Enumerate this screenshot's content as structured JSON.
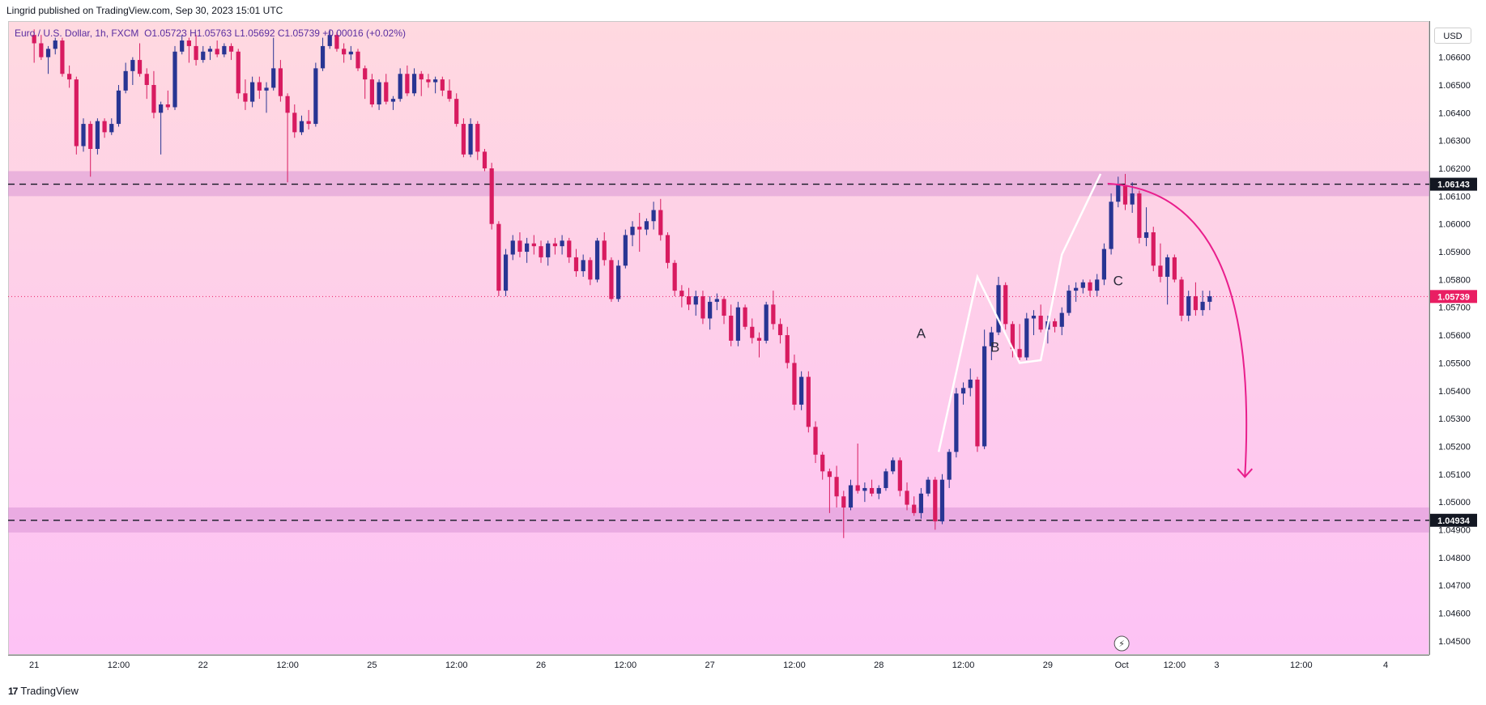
{
  "header": {
    "published": "Lingrid published on TradingView.com, Sep 30, 2023 15:01 UTC"
  },
  "symbol": {
    "name": "Euro / U.S. Dollar, 1h, FXCM",
    "ohlc": "O1.05723  H1.05763  L1.05692  C1.05739  +0.00016 (+0.02%)"
  },
  "currency_label": "USD",
  "footer": {
    "brand": "TradingView",
    "logo": "17"
  },
  "chart_data": {
    "type": "candlestick",
    "title": "",
    "xlabel": "",
    "ylabel": "",
    "ylim": [
      1.0445,
      1.0673
    ],
    "price_ticks": [
      1.066,
      1.065,
      1.064,
      1.063,
      1.062,
      1.061,
      1.06,
      1.059,
      1.058,
      1.057,
      1.056,
      1.055,
      1.054,
      1.053,
      1.052,
      1.051,
      1.05,
      1.049,
      1.048,
      1.047,
      1.046,
      1.045
    ],
    "price_tick_labels": [
      "1.06600",
      "1.06500",
      "1.06400",
      "1.06300",
      "1.06200",
      "1.06100",
      "1.06000",
      "1.05900",
      "1.05800",
      "1.05700",
      "1.05600",
      "1.05500",
      "1.05400",
      "1.05300",
      "1.05200",
      "1.05100",
      "1.05000",
      "1.04900",
      "1.04800",
      "1.04700",
      "1.04600",
      "1.04500"
    ],
    "time_ticks": [
      {
        "label": "21",
        "x": 0
      },
      {
        "label": "12:00",
        "x": 12
      },
      {
        "label": "22",
        "x": 24
      },
      {
        "label": "12:00",
        "x": 36
      },
      {
        "label": "25",
        "x": 48
      },
      {
        "label": "12:00",
        "x": 60
      },
      {
        "label": "26",
        "x": 72
      },
      {
        "label": "12:00",
        "x": 84
      },
      {
        "label": "27",
        "x": 96
      },
      {
        "label": "12:00",
        "x": 108
      },
      {
        "label": "28",
        "x": 120
      },
      {
        "label": "12:00",
        "x": 132
      },
      {
        "label": "29",
        "x": 144
      },
      {
        "label": "Oct",
        "x": 154.5
      },
      {
        "label": "12:00",
        "x": 162
      },
      {
        "label": "3",
        "x": 168
      },
      {
        "label": "12:00",
        "x": 180
      },
      {
        "label": "4",
        "x": 192
      }
    ],
    "xlim": [
      -3.7,
      198.2
    ],
    "resistance_zone": [
      1.061,
      1.0619
    ],
    "support_zone": [
      1.0489,
      1.0498
    ],
    "resistance_level": 1.06143,
    "support_level": 1.04934,
    "resistance_label": "1.06143",
    "support_label": "1.04934",
    "last_price": 1.05739,
    "last_price_label": "1.05739",
    "wave_labels": [
      {
        "text": "A",
        "x": 126,
        "y": 1.0559
      },
      {
        "text": "B",
        "x": 136.5,
        "y": 1.0554
      },
      {
        "text": "C",
        "x": 154,
        "y": 1.0578
      }
    ],
    "pattern_line": [
      [
        128.5,
        1.0518
      ],
      [
        134,
        1.0581
      ],
      [
        140,
        1.055
      ],
      [
        143,
        1.0551
      ],
      [
        146,
        1.0589
      ],
      [
        151.5,
        1.0618
      ]
    ],
    "projection_arrow": {
      "from": [
        152.5,
        1.06145
      ],
      "to": [
        172,
        1.0509
      ]
    },
    "candles": [
      [
        1.0668,
        1.067,
        1.0658,
        1.0665
      ],
      [
        1.0665,
        1.0668,
        1.0659,
        1.066
      ],
      [
        1.066,
        1.0664,
        1.0654,
        1.0663
      ],
      [
        1.0663,
        1.0667,
        1.0661,
        1.0666
      ],
      [
        1.0666,
        1.0667,
        1.0653,
        1.0654
      ],
      [
        1.0654,
        1.0657,
        1.0649,
        1.0652
      ],
      [
        1.0652,
        1.0653,
        1.0625,
        1.0628
      ],
      [
        1.0628,
        1.0638,
        1.0626,
        1.0636
      ],
      [
        1.0636,
        1.0637,
        1.0617,
        1.0627
      ],
      [
        1.0627,
        1.0638,
        1.0625,
        1.0637
      ],
      [
        1.0637,
        1.0638,
        1.0631,
        1.0633
      ],
      [
        1.0633,
        1.0638,
        1.0632,
        1.0636
      ],
      [
        1.0636,
        1.065,
        1.0635,
        1.0648
      ],
      [
        1.0648,
        1.0658,
        1.0647,
        1.0655
      ],
      [
        1.0655,
        1.066,
        1.065,
        1.0659
      ],
      [
        1.0659,
        1.0665,
        1.0653,
        1.0654
      ],
      [
        1.0654,
        1.0656,
        1.0645,
        1.065
      ],
      [
        1.065,
        1.0655,
        1.0638,
        1.064
      ],
      [
        1.064,
        1.0644,
        1.0625,
        1.0643
      ],
      [
        1.0643,
        1.0648,
        1.0641,
        1.0642
      ],
      [
        1.0642,
        1.0664,
        1.0641,
        1.0662
      ],
      [
        1.0662,
        1.0668,
        1.0661,
        1.0666
      ],
      [
        1.0666,
        1.0667,
        1.0658,
        1.0664
      ],
      [
        1.0664,
        1.0668,
        1.0657,
        1.0659
      ],
      [
        1.0659,
        1.0664,
        1.0658,
        1.0662
      ],
      [
        1.0662,
        1.0664,
        1.0659,
        1.0663
      ],
      [
        1.0663,
        1.0666,
        1.066,
        1.0661
      ],
      [
        1.0661,
        1.0665,
        1.066,
        1.0664
      ],
      [
        1.0664,
        1.0665,
        1.0659,
        1.0662
      ],
      [
        1.0662,
        1.0663,
        1.0645,
        1.0647
      ],
      [
        1.0647,
        1.0652,
        1.0641,
        1.0644
      ],
      [
        1.0644,
        1.0653,
        1.0642,
        1.0651
      ],
      [
        1.0651,
        1.0653,
        1.0645,
        1.0648
      ],
      [
        1.0648,
        1.0651,
        1.064,
        1.0649
      ],
      [
        1.0649,
        1.0667,
        1.0648,
        1.0656
      ],
      [
        1.0656,
        1.0659,
        1.0644,
        1.0646
      ],
      [
        1.0646,
        1.0647,
        1.0615,
        1.064
      ],
      [
        1.064,
        1.0643,
        1.0631,
        1.0633
      ],
      [
        1.0633,
        1.0639,
        1.0632,
        1.0637
      ],
      [
        1.0637,
        1.0641,
        1.0634,
        1.0636
      ],
      [
        1.0636,
        1.0658,
        1.0635,
        1.0656
      ],
      [
        1.0656,
        1.0667,
        1.0655,
        1.0664
      ],
      [
        1.0664,
        1.067,
        1.0663,
        1.0668
      ],
      [
        1.0668,
        1.0669,
        1.0662,
        1.0663
      ],
      [
        1.0663,
        1.0665,
        1.0658,
        1.0661
      ],
      [
        1.0661,
        1.0664,
        1.0659,
        1.0662
      ],
      [
        1.0662,
        1.0663,
        1.0655,
        1.0656
      ],
      [
        1.0656,
        1.0657,
        1.0645,
        1.0652
      ],
      [
        1.0652,
        1.0654,
        1.0642,
        1.0643
      ],
      [
        1.0643,
        1.0652,
        1.0641,
        1.0651
      ],
      [
        1.0651,
        1.0654,
        1.0643,
        1.0644
      ],
      [
        1.0644,
        1.0646,
        1.0641,
        1.0645
      ],
      [
        1.0645,
        1.0656,
        1.0644,
        1.0654
      ],
      [
        1.0654,
        1.0657,
        1.0646,
        1.0647
      ],
      [
        1.0647,
        1.0656,
        1.0646,
        1.0654
      ],
      [
        1.0654,
        1.0655,
        1.0646,
        1.0652
      ],
      [
        1.0652,
        1.0654,
        1.0649,
        1.0651
      ],
      [
        1.0651,
        1.0653,
        1.0647,
        1.0652
      ],
      [
        1.0652,
        1.0653,
        1.0646,
        1.0648
      ],
      [
        1.0648,
        1.0652,
        1.0644,
        1.0645
      ],
      [
        1.0645,
        1.0647,
        1.0635,
        1.0636
      ],
      [
        1.0636,
        1.0638,
        1.0624,
        1.0625
      ],
      [
        1.0625,
        1.0638,
        1.0624,
        1.0636
      ],
      [
        1.0636,
        1.0637,
        1.0623,
        1.0626
      ],
      [
        1.0626,
        1.0627,
        1.0619,
        1.062
      ],
      [
        1.062,
        1.0622,
        1.0598,
        1.06
      ],
      [
        1.06,
        1.0601,
        1.0574,
        1.0576
      ],
      [
        1.0576,
        1.0591,
        1.0574,
        1.0589
      ],
      [
        1.0589,
        1.0596,
        1.0587,
        1.0594
      ],
      [
        1.0594,
        1.0597,
        1.0588,
        1.059
      ],
      [
        1.059,
        1.0595,
        1.0586,
        1.0593
      ],
      [
        1.0593,
        1.0596,
        1.0589,
        1.0592
      ],
      [
        1.0592,
        1.0594,
        1.0586,
        1.0588
      ],
      [
        1.0588,
        1.0594,
        1.0585,
        1.0593
      ],
      [
        1.0593,
        1.0595,
        1.0589,
        1.0592
      ],
      [
        1.0592,
        1.0596,
        1.0589,
        1.0594
      ],
      [
        1.0594,
        1.0595,
        1.0586,
        1.0588
      ],
      [
        1.0588,
        1.0591,
        1.0581,
        1.0583
      ],
      [
        1.0583,
        1.0589,
        1.0581,
        1.0587
      ],
      [
        1.0587,
        1.0588,
        1.0578,
        1.058
      ],
      [
        1.058,
        1.0595,
        1.0579,
        1.0594
      ],
      [
        1.0594,
        1.0597,
        1.0585,
        1.0587
      ],
      [
        1.0587,
        1.0588,
        1.0572,
        1.0573
      ],
      [
        1.0573,
        1.0587,
        1.0572,
        1.0585
      ],
      [
        1.0585,
        1.0598,
        1.0584,
        1.0596
      ],
      [
        1.0596,
        1.0601,
        1.0592,
        1.0599
      ],
      [
        1.0599,
        1.0604,
        1.059,
        1.0598
      ],
      [
        1.0598,
        1.0602,
        1.0596,
        1.0601
      ],
      [
        1.0601,
        1.0608,
        1.0598,
        1.0605
      ],
      [
        1.0605,
        1.0609,
        1.0594,
        1.0596
      ],
      [
        1.0596,
        1.0597,
        1.0584,
        1.0586
      ],
      [
        1.0586,
        1.0587,
        1.0574,
        1.0576
      ],
      [
        1.0576,
        1.0578,
        1.057,
        1.0574
      ],
      [
        1.0574,
        1.0577,
        1.0569,
        1.0571
      ],
      [
        1.0571,
        1.0576,
        1.0567,
        1.0574
      ],
      [
        1.0574,
        1.0576,
        1.0564,
        1.0566
      ],
      [
        1.0566,
        1.0574,
        1.0562,
        1.0572
      ],
      [
        1.0572,
        1.0575,
        1.0569,
        1.0573
      ],
      [
        1.0573,
        1.0574,
        1.0564,
        1.0567
      ],
      [
        1.0567,
        1.0571,
        1.0556,
        1.0558
      ],
      [
        1.0558,
        1.0572,
        1.0556,
        1.057
      ],
      [
        1.057,
        1.0571,
        1.0562,
        1.0563
      ],
      [
        1.0563,
        1.0566,
        1.0557,
        1.0559
      ],
      [
        1.0559,
        1.0561,
        1.0552,
        1.0558
      ],
      [
        1.0558,
        1.0572,
        1.0557,
        1.0571
      ],
      [
        1.0571,
        1.0576,
        1.0562,
        1.0564
      ],
      [
        1.0564,
        1.0566,
        1.0557,
        1.056
      ],
      [
        1.056,
        1.0563,
        1.0548,
        1.055
      ],
      [
        1.055,
        1.0553,
        1.0533,
        1.0535
      ],
      [
        1.0535,
        1.0547,
        1.0533,
        1.0545
      ],
      [
        1.0545,
        1.0547,
        1.0525,
        1.0527
      ],
      [
        1.0527,
        1.0529,
        1.0514,
        1.0517
      ],
      [
        1.0517,
        1.0518,
        1.0508,
        1.0511
      ],
      [
        1.0511,
        1.0512,
        1.0496,
        1.0509
      ],
      [
        1.0509,
        1.0513,
        1.0498,
        1.0502
      ],
      [
        1.0502,
        1.0504,
        1.0487,
        1.0498
      ],
      [
        1.0498,
        1.0508,
        1.0497,
        1.0506
      ],
      [
        1.0506,
        1.0521,
        1.0503,
        1.0504
      ],
      [
        1.0504,
        1.0507,
        1.05,
        1.0505
      ],
      [
        1.0505,
        1.0508,
        1.0502,
        1.0503
      ],
      [
        1.0503,
        1.0506,
        1.0501,
        1.0505
      ],
      [
        1.0505,
        1.0512,
        1.0504,
        1.0511
      ],
      [
        1.0511,
        1.0516,
        1.051,
        1.0515
      ],
      [
        1.0515,
        1.0516,
        1.0502,
        1.0504
      ],
      [
        1.0504,
        1.0507,
        1.0497,
        1.0499
      ],
      [
        1.0499,
        1.0502,
        1.0495,
        1.0496
      ],
      [
        1.0496,
        1.0505,
        1.0494,
        1.0503
      ],
      [
        1.0503,
        1.0509,
        1.0502,
        1.0508
      ],
      [
        1.0508,
        1.0509,
        1.049,
        1.0493
      ],
      [
        1.0493,
        1.051,
        1.0492,
        1.0508
      ],
      [
        1.0508,
        1.0519,
        1.0505,
        1.0518
      ],
      [
        1.0518,
        1.0541,
        1.0516,
        1.0539
      ],
      [
        1.0539,
        1.0543,
        1.0535,
        1.0541
      ],
      [
        1.0541,
        1.0548,
        1.0538,
        1.0544
      ],
      [
        1.0544,
        1.0545,
        1.0518,
        1.052
      ],
      [
        1.052,
        1.0562,
        1.0519,
        1.0556
      ],
      [
        1.0556,
        1.0563,
        1.0551,
        1.0561
      ],
      [
        1.0561,
        1.0581,
        1.056,
        1.0578
      ],
      [
        1.0578,
        1.0579,
        1.0562,
        1.0564
      ],
      [
        1.0564,
        1.0565,
        1.0552,
        1.0555
      ],
      [
        1.0555,
        1.0564,
        1.0551,
        1.0552
      ],
      [
        1.0552,
        1.0568,
        1.0551,
        1.0566
      ],
      [
        1.0566,
        1.0569,
        1.056,
        1.0567
      ],
      [
        1.0567,
        1.0571,
        1.0561,
        1.0562
      ],
      [
        1.0562,
        1.0567,
        1.0557,
        1.0565
      ],
      [
        1.0565,
        1.0566,
        1.0561,
        1.0563
      ],
      [
        1.0563,
        1.057,
        1.056,
        1.0568
      ],
      [
        1.0568,
        1.0578,
        1.0567,
        1.0576
      ],
      [
        1.0576,
        1.0579,
        1.0572,
        1.0577
      ],
      [
        1.0577,
        1.058,
        1.0575,
        1.0579
      ],
      [
        1.0579,
        1.058,
        1.0574,
        1.0576
      ],
      [
        1.0576,
        1.0582,
        1.0574,
        1.058
      ],
      [
        1.058,
        1.0593,
        1.0578,
        1.0591
      ],
      [
        1.0591,
        1.0611,
        1.0589,
        1.0608
      ],
      [
        1.0608,
        1.0617,
        1.0606,
        1.0614
      ],
      [
        1.0614,
        1.0618,
        1.0605,
        1.0607
      ],
      [
        1.0607,
        1.0615,
        1.0604,
        1.0611
      ],
      [
        1.0611,
        1.0612,
        1.0593,
        1.0595
      ],
      [
        1.0595,
        1.0606,
        1.0592,
        1.0597
      ],
      [
        1.0597,
        1.0599,
        1.0583,
        1.0585
      ],
      [
        1.0585,
        1.0593,
        1.0579,
        1.0581
      ],
      [
        1.0581,
        1.0589,
        1.0571,
        1.0588
      ],
      [
        1.0588,
        1.0589,
        1.0579,
        1.058
      ],
      [
        1.058,
        1.0581,
        1.0565,
        1.0567
      ],
      [
        1.0567,
        1.0576,
        1.0565,
        1.0574
      ],
      [
        1.0574,
        1.0579,
        1.0567,
        1.0569
      ],
      [
        1.0569,
        1.0576,
        1.0567,
        1.0572
      ],
      [
        1.0572,
        1.0576,
        1.0569,
        1.0574
      ]
    ]
  }
}
